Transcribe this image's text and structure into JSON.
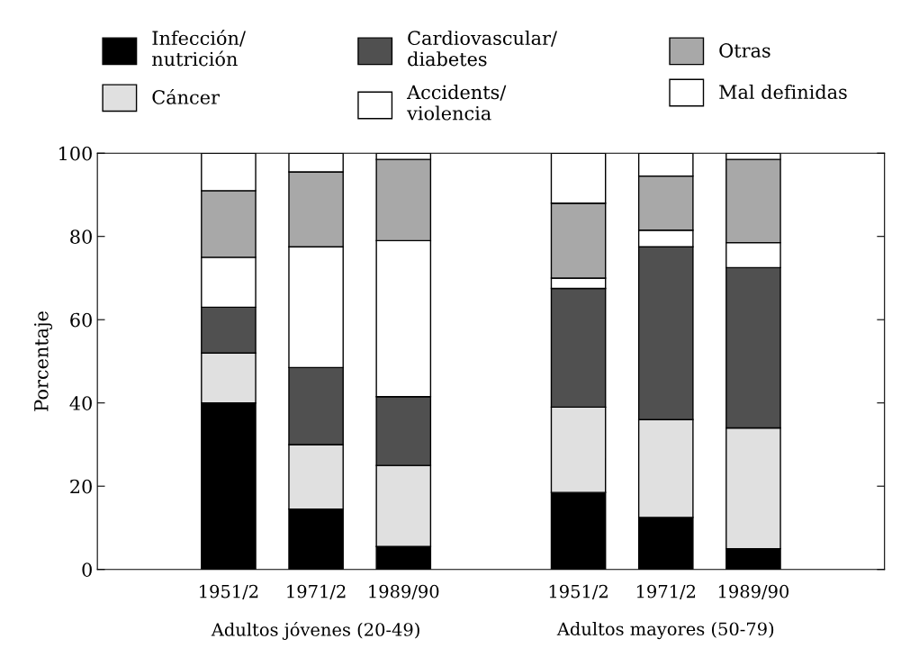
{
  "chart_data": {
    "type": "bar",
    "stacked": true,
    "ylabel": "Porcentaje",
    "categories": [
      null,
      "1951/2",
      "1971/2",
      "1989/90",
      null,
      "1951/2",
      "1971/2",
      "1989/90",
      null
    ],
    "series": [
      {
        "name": "Infección/\nnutrición",
        "color": "#000000",
        "values": [
          null,
          40,
          14.5,
          5.5,
          null,
          18.5,
          12.5,
          5,
          null
        ]
      },
      {
        "name": "Cáncer",
        "color": "#e0e0e0",
        "values": [
          null,
          12,
          15.5,
          19.5,
          null,
          20.5,
          23.5,
          29,
          null
        ]
      },
      {
        "name": "Cardiovascular/\ndiabetes",
        "color": "#505050",
        "values": [
          null,
          11,
          18.5,
          16.5,
          null,
          28.5,
          41.5,
          38.5,
          null
        ]
      },
      {
        "name": "Accidents/\nviolencia",
        "color": "#ffffff",
        "values": [
          null,
          12,
          29,
          37.5,
          null,
          2.5,
          4,
          6,
          null
        ]
      },
      {
        "name": "Otras",
        "color": "#a8a8a8",
        "values": [
          null,
          16,
          18,
          19.5,
          null,
          18,
          13,
          20,
          null
        ]
      },
      {
        "name": "Mal definidas",
        "color": "#ffffff",
        "values": [
          null,
          9,
          4.5,
          1.5,
          null,
          12,
          5.5,
          1.5,
          null
        ]
      }
    ],
    "ylim": [
      0,
      100
    ],
    "yticks": [
      0,
      20,
      40,
      60,
      80,
      100
    ],
    "legend": "top",
    "grid": false,
    "annotations": [
      "Adultos jóvenes (20-49)",
      "Adultos mayores (50-79)"
    ]
  }
}
